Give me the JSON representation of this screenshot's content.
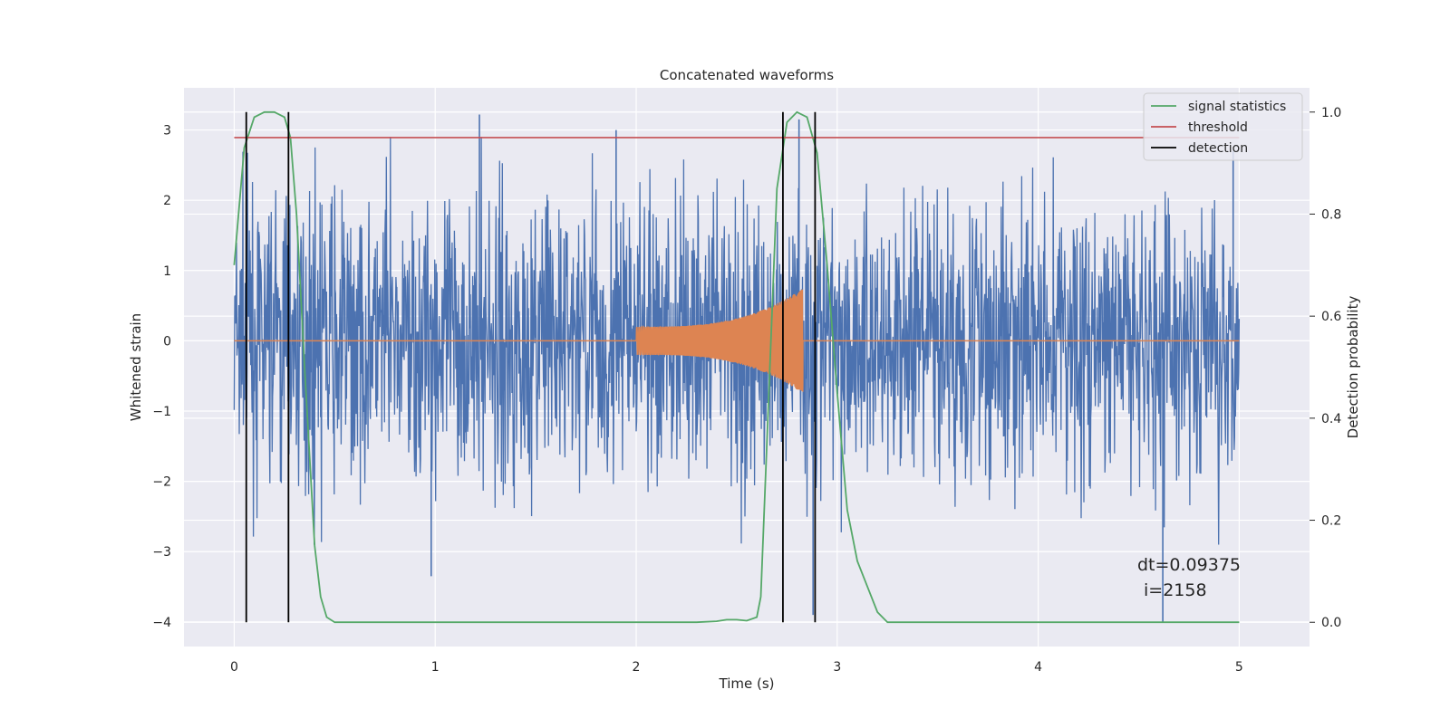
{
  "chart_data": {
    "type": "line",
    "title": "Concatenated waveforms",
    "xlabel": "Time (s)",
    "ylabel": "Whitened strain",
    "y2label": "Detection probability",
    "xlim": [
      -0.25,
      5.35
    ],
    "ylim": [
      -4.35,
      3.6
    ],
    "y2lim": [
      -0.0475,
      1.0475
    ],
    "x_ticks": [
      0,
      1,
      2,
      3,
      4,
      5
    ],
    "y_ticks": [
      -4,
      -3,
      -2,
      -1,
      0,
      1,
      2,
      3
    ],
    "y2_ticks": [
      0.0,
      0.2,
      0.4,
      0.6,
      0.8,
      1.0
    ],
    "grid": true,
    "legend_position": "upper right",
    "colors": {
      "background": "#eaeaf2",
      "grid": "#ffffff",
      "strain": "#4c72b0",
      "template": "#dd8452",
      "signal_statistics": "#55a868",
      "threshold": "#c44e52",
      "detection": "#000000"
    },
    "series": [
      {
        "name": "signal statistics",
        "axis": "right",
        "x": [
          0,
          0.05,
          0.1,
          0.15,
          0.2,
          0.25,
          0.28,
          0.31,
          0.35,
          0.4,
          0.43,
          0.46,
          0.5,
          0.8,
          1.5,
          2.0,
          2.3,
          2.4,
          2.45,
          2.5,
          2.55,
          2.6,
          2.62,
          2.65,
          2.7,
          2.75,
          2.8,
          2.85,
          2.9,
          2.95,
          3.0,
          3.05,
          3.1,
          3.15,
          3.2,
          3.25,
          3.4,
          4.0,
          5.0
        ],
        "y": [
          0.7,
          0.93,
          0.99,
          1.0,
          1.0,
          0.99,
          0.95,
          0.8,
          0.5,
          0.15,
          0.05,
          0.01,
          0.0,
          0.0,
          0.0,
          0.0,
          0.0,
          0.002,
          0.005,
          0.005,
          0.003,
          0.01,
          0.05,
          0.35,
          0.85,
          0.98,
          1.0,
          0.99,
          0.92,
          0.7,
          0.45,
          0.22,
          0.12,
          0.07,
          0.02,
          0.0,
          0.0,
          0.0,
          0.0
        ]
      },
      {
        "name": "threshold",
        "axis": "right",
        "x": [
          0,
          5.0
        ],
        "y": [
          0.95,
          0.95
        ]
      },
      {
        "name": "detection",
        "axis": "right",
        "x": [
          0.06,
          0.27,
          2.73,
          2.89
        ],
        "y_range": [
          0.0,
          1.0
        ]
      },
      {
        "name": "",
        "axis": "left",
        "kind": "whitened strain noise",
        "x_range": [
          0,
          5.0
        ],
        "envelope": [
          -2.6,
          2.6
        ],
        "peaks": [
          {
            "x": 1.22,
            "y": 3.22
          },
          {
            "x": 0.98,
            "y": -3.35
          },
          {
            "x": 4.62,
            "y": -4.0
          },
          {
            "x": 2.88,
            "y": -3.9
          },
          {
            "x": 4.97,
            "y": 2.7
          },
          {
            "x": 2.81,
            "y": 3.15
          },
          {
            "x": 1.9,
            "y": 3.0
          }
        ]
      },
      {
        "name": "",
        "axis": "left",
        "kind": "chirp template",
        "x_range": [
          2.0,
          2.83
        ],
        "amplitude_start": 0.2,
        "amplitude_end": 0.75
      }
    ],
    "annotations": [
      "dt=0.09375",
      "i=2158"
    ]
  }
}
